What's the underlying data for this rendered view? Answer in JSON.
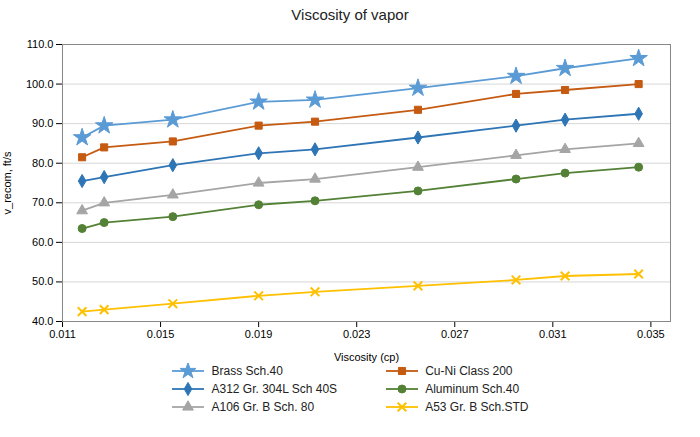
{
  "chart_data": {
    "type": "line",
    "title": "Viscosity of vapor",
    "xlabel": "Viscosity (cp)",
    "ylabel": "v_recom, ft/s",
    "x": [
      0.0118,
      0.0127,
      0.0155,
      0.019,
      0.0213,
      0.0255,
      0.0295,
      0.0315,
      0.0345
    ],
    "xlim": [
      0.011,
      0.0358
    ],
    "ylim": [
      40.0,
      110.0
    ],
    "xticks": [
      0.011,
      0.015,
      0.019,
      0.023,
      0.027,
      0.031,
      0.035
    ],
    "yticks": [
      {
        "value": 40.0,
        "label": "40.0"
      },
      {
        "value": 50.0,
        "label": "50.0"
      },
      {
        "value": 60.0,
        "label": "60.0"
      },
      {
        "value": 70.0,
        "label": "70.0"
      },
      {
        "value": 80.0,
        "label": "80.0"
      },
      {
        "value": 90.0,
        "label": "90.0"
      },
      {
        "value": 100.0,
        "label": "100.0"
      },
      {
        "value": 110.0,
        "label": "110.0"
      }
    ],
    "grid": "y",
    "legend": "bottom",
    "series": [
      {
        "name": "Brass Sch.40",
        "color": "#5B9BD5",
        "marker": "star",
        "values": [
          86.5,
          89.5,
          91.0,
          95.5,
          96.0,
          99.0,
          102.0,
          104.0,
          106.5
        ]
      },
      {
        "name": "Cu-Ni Class 200",
        "color": "#C55A11",
        "marker": "square",
        "values": [
          81.5,
          84.0,
          85.5,
          89.5,
          90.5,
          93.5,
          97.5,
          98.5,
          100.0
        ]
      },
      {
        "name": "A312 Gr. 304L Sch 40S",
        "color": "#2E75B6",
        "marker": "diamond",
        "values": [
          75.5,
          76.5,
          79.5,
          82.5,
          83.5,
          86.5,
          89.5,
          91.0,
          92.5
        ]
      },
      {
        "name": "Aluminum Sch.40",
        "color": "#538135",
        "marker": "circle",
        "values": [
          63.5,
          65.0,
          66.5,
          69.5,
          70.5,
          73.0,
          76.0,
          77.5,
          79.0
        ]
      },
      {
        "name": "A106 Gr. B Sch. 80",
        "color": "#A5A5A5",
        "marker": "triangle",
        "values": [
          68.0,
          70.0,
          72.0,
          75.0,
          76.0,
          79.0,
          82.0,
          83.5,
          85.0
        ]
      },
      {
        "name": "A53 Gr. B Sch.STD",
        "color": "#FFC000",
        "marker": "times",
        "values": [
          42.5,
          43.0,
          44.5,
          46.5,
          47.5,
          49.0,
          50.5,
          51.5,
          52.0
        ]
      }
    ]
  }
}
